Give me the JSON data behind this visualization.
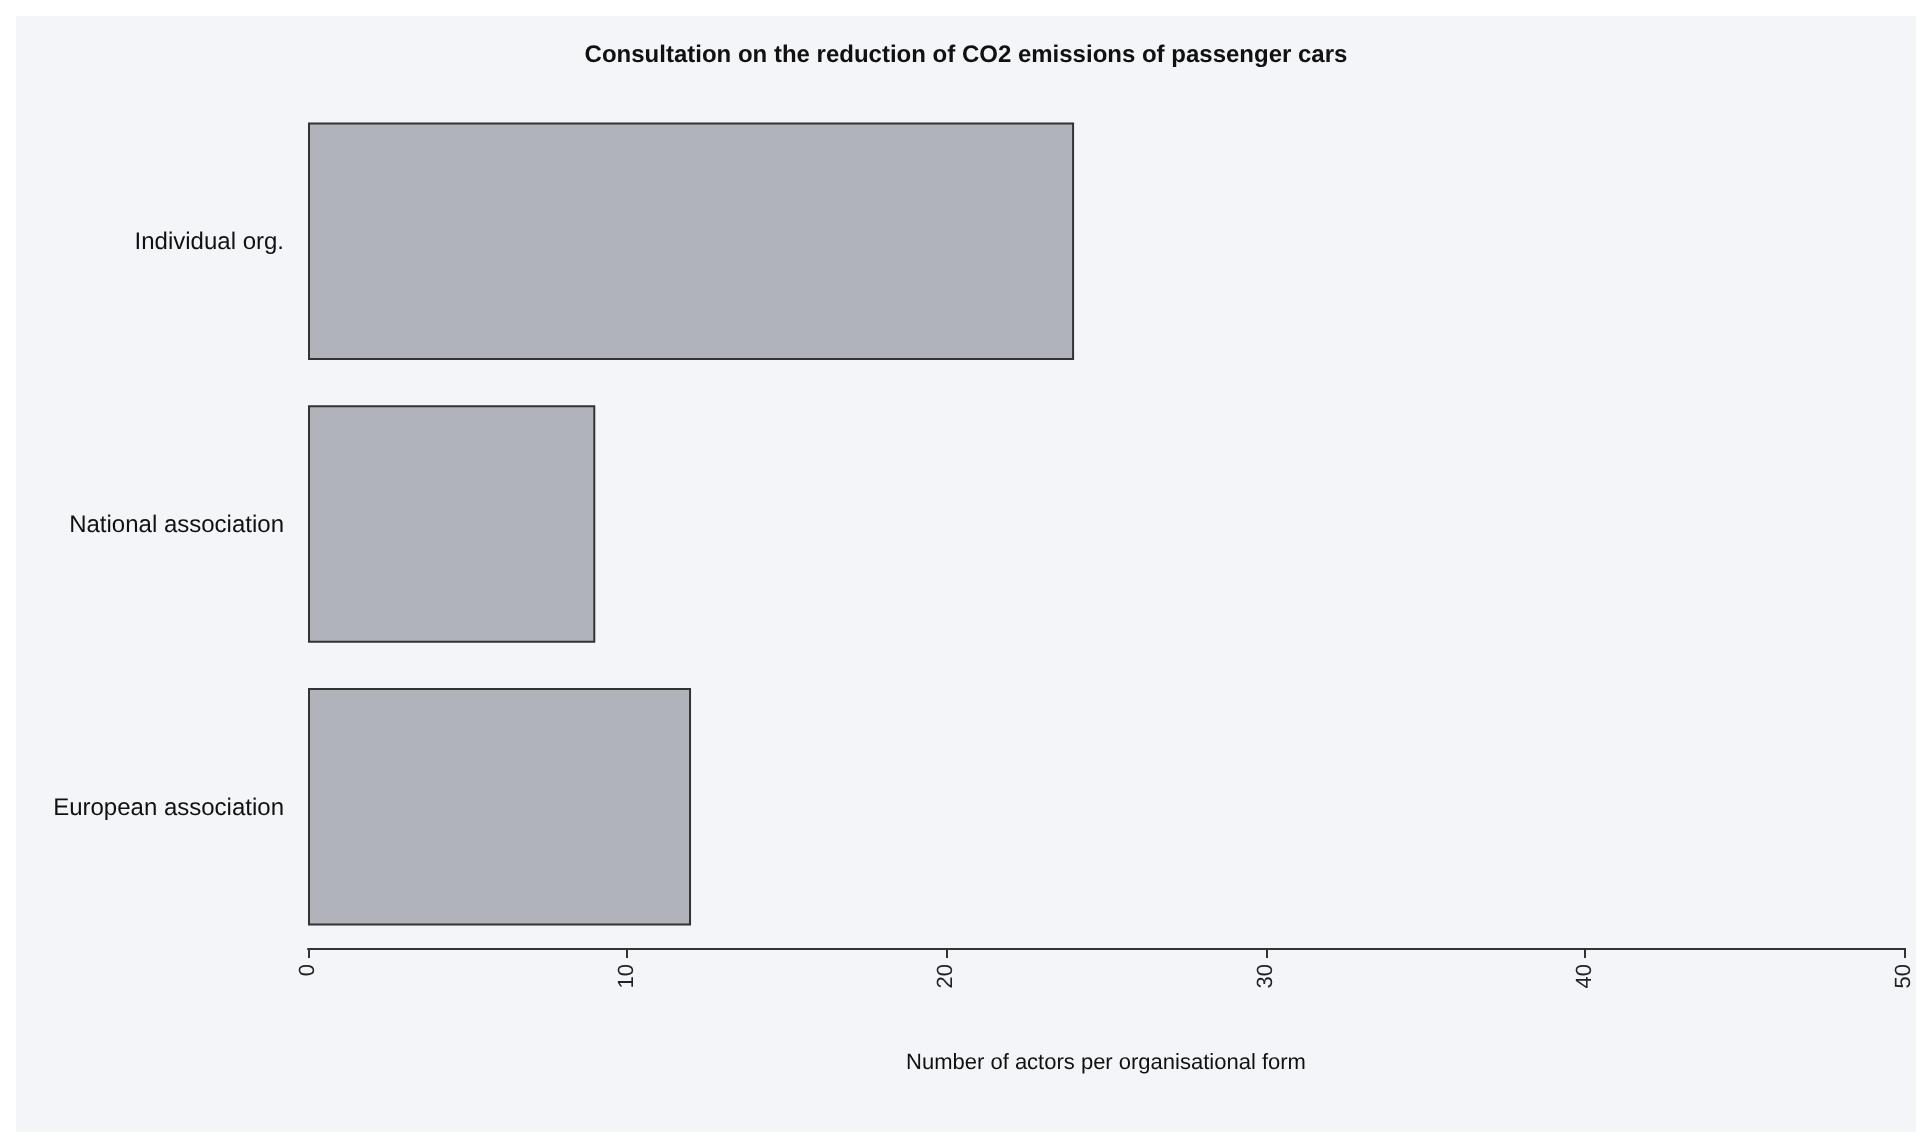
{
  "chart_data": {
    "type": "bar",
    "orientation": "horizontal",
    "title": "Consultation on the reduction of CO2 emissions of passenger cars",
    "xlabel": "Number of actors per organisational form",
    "categories": [
      "Individual org.",
      "National association",
      "European association"
    ],
    "values": [
      24,
      9,
      12
    ],
    "color": "#b0b3ba",
    "xlim": [
      0,
      50
    ],
    "xticks": [
      0,
      10,
      20,
      30,
      40,
      50
    ],
    "grid": false
  }
}
